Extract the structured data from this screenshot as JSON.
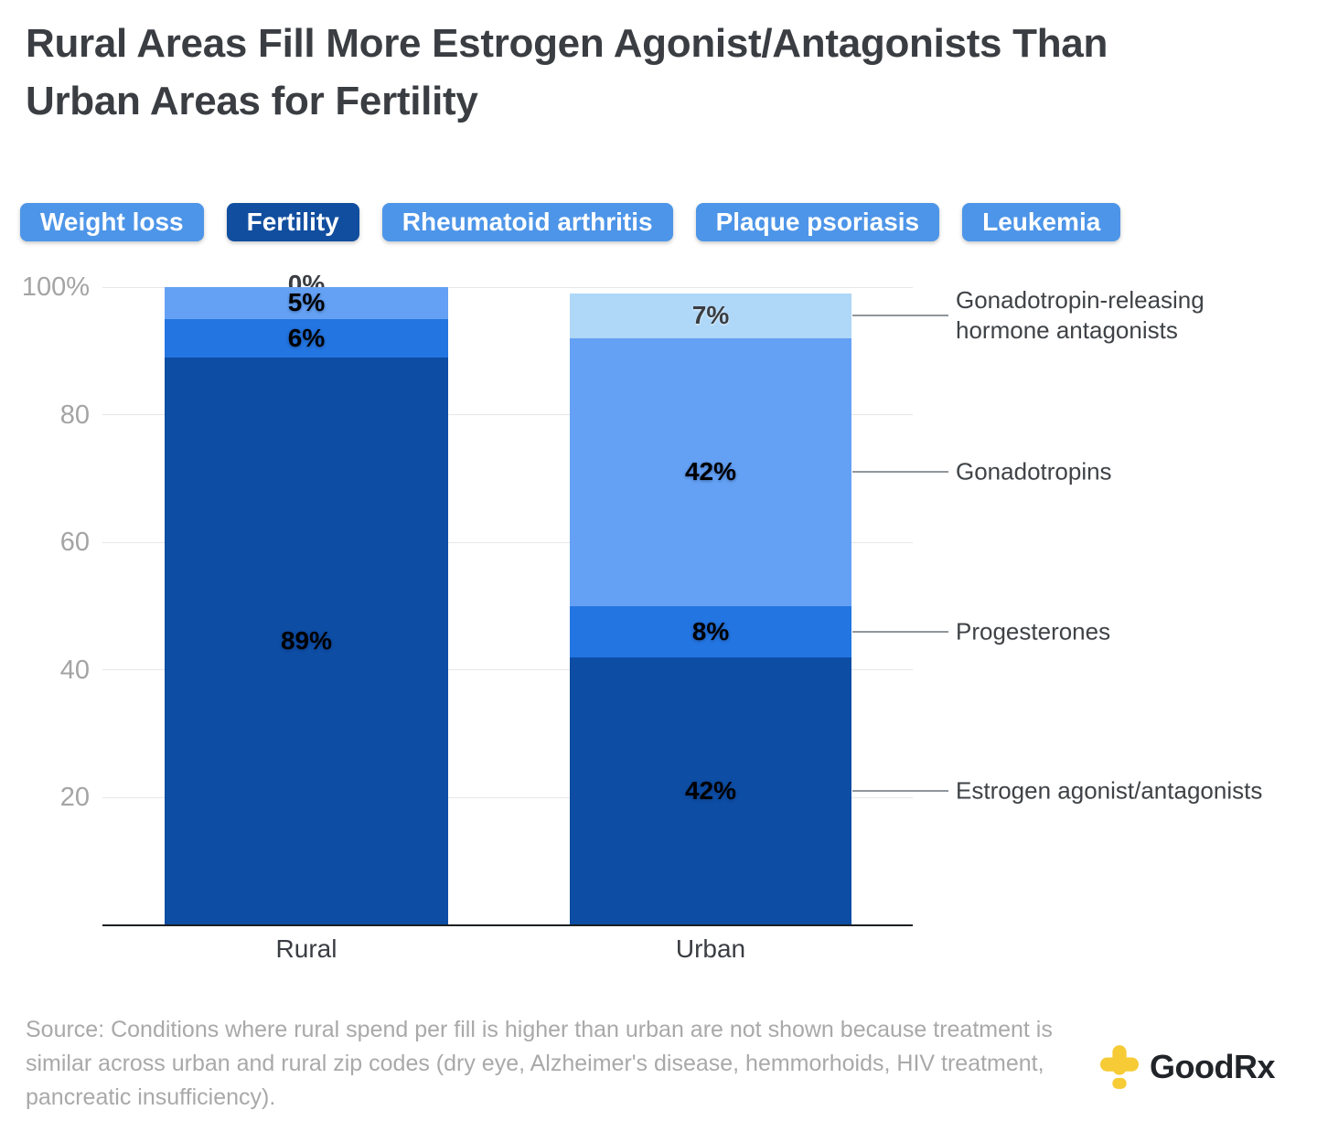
{
  "title": {
    "lines": [
      "Rural Areas Fill More Estrogen Agonist/Antagonists Than",
      "Urban Areas for Fertility"
    ]
  },
  "tabs": [
    {
      "label": "Weight loss",
      "active": false
    },
    {
      "label": "Fertility",
      "active": true
    },
    {
      "label": "Rheumatoid arthritis",
      "active": false
    },
    {
      "label": "Plaque psoriasis",
      "active": false
    },
    {
      "label": "Leukemia",
      "active": false
    }
  ],
  "colors": {
    "tab_inactive": "#4d95e8",
    "tab_active": "#114e9f",
    "gridline": "#e7e7e7",
    "axis": "#1c1f23",
    "leader_line": "#8f969c",
    "goodrx_yellow": "#f6cb35"
  },
  "chart_data": {
    "type": "bar",
    "subtype": "stacked-percent-column",
    "categories": [
      "Rural",
      "Urban"
    ],
    "series": [
      {
        "name": "Gonadotropin-releasing hormone antagonists",
        "color": "#aed7f8",
        "label_color": "dark",
        "values": [
          0,
          7
        ]
      },
      {
        "name": "Gonadotropins",
        "color": "#64a1f4",
        "label_color": "white",
        "values": [
          5,
          42
        ]
      },
      {
        "name": "Progesterones",
        "color": "#2375e1",
        "label_color": "white",
        "values": [
          6,
          8
        ]
      },
      {
        "name": "Estrogen agonist/antagonists",
        "color": "#0d4da4",
        "label_color": "white",
        "values": [
          89,
          42
        ]
      }
    ],
    "value_labels": [
      [
        "0%",
        "5%",
        "6%",
        "89%"
      ],
      [
        "7%",
        "42%",
        "8%",
        "42%"
      ]
    ],
    "y_ticks": [
      {
        "value": 100,
        "label": "100%"
      },
      {
        "value": 80,
        "label": "80"
      },
      {
        "value": 60,
        "label": "60"
      },
      {
        "value": 40,
        "label": "40"
      },
      {
        "value": 20,
        "label": "20"
      }
    ],
    "ylim": [
      0,
      100
    ],
    "grid": true,
    "legend_position": "right",
    "title": "Rural Areas Fill More Estrogen Agonist/Antagonists Than Urban Areas for Fertility",
    "xlabel": "",
    "ylabel": ""
  },
  "source": {
    "text": "Source: Conditions where rural spend per fill is higher than urban are not shown because treatment is similar across urban and rural zip codes (dry eye, Alzheimer's disease, hemmorhoids, HIV treatment, pancreatic insufficiency)."
  },
  "logo": {
    "brand": "GoodRx",
    "text_primary": "Good",
    "text_secondary": "Rx"
  }
}
